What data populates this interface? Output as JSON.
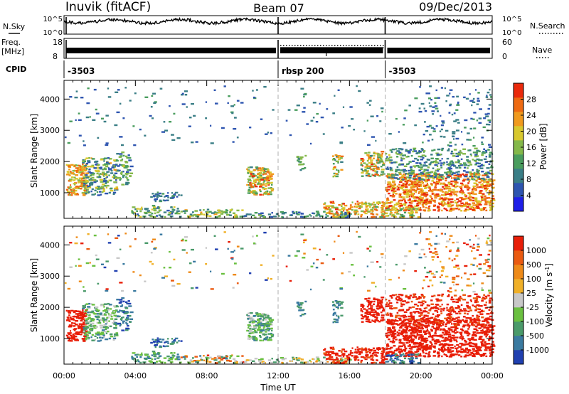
{
  "header": {
    "station": "Inuvik (fitACF)",
    "beam": "Beam 07",
    "date": "09/Dec/2013"
  },
  "panels": {
    "nsky": {
      "left_label": "N.Sky",
      "left_ticks": [
        "10^5",
        "10^0"
      ],
      "right_label": "N.Search",
      "right_ticks": [
        "10^5",
        "10^0"
      ]
    },
    "freq": {
      "left_label_1": "Freq.",
      "left_label_2": "[MHz]",
      "left_ticks": [
        "18",
        "8"
      ],
      "right_label": "Nave",
      "right_ticks": [
        "60",
        "0"
      ]
    },
    "cpid": {
      "label": "CPID",
      "segments": [
        "-3503",
        "rbsp 200",
        "-3503"
      ],
      "segment_start_hours": [
        0,
        12,
        18
      ]
    }
  },
  "chart_data": [
    {
      "type": "heatmap",
      "name": "power",
      "ylabel": "Slant Range [km]",
      "xlim": [
        0,
        24
      ],
      "ylim": [
        180,
        4600
      ],
      "y_ticks": [
        1000,
        2000,
        3000,
        4000
      ],
      "colorbar": {
        "title": "Power [dB]",
        "range": [
          0,
          32
        ],
        "tick_values": [
          4,
          8,
          12,
          16,
          20,
          24,
          28
        ],
        "tick_labels": [
          "4",
          "8",
          "12",
          "16",
          "20",
          "24",
          "28"
        ],
        "colors": [
          "#1f1fe8",
          "#2e55b0",
          "#3a7e86",
          "#4a9d5e",
          "#84b84a",
          "#d8c82e",
          "#f09a1e",
          "#ee6a12",
          "#ea2a0c"
        ]
      }
    },
    {
      "type": "heatmap",
      "name": "velocity",
      "ylabel": "Slant Range [km]",
      "xlabel": "Time UT",
      "xlim": [
        0,
        24
      ],
      "ylim": [
        180,
        4600
      ],
      "y_ticks": [
        1000,
        2000,
        3000,
        4000
      ],
      "x_ticks": [
        0,
        4,
        8,
        12,
        16,
        20,
        24
      ],
      "x_tick_labels": [
        "00:00",
        "04:00",
        "08:00",
        "12:00",
        "16:00",
        "20:00",
        "00:00"
      ],
      "colorbar": {
        "title": "Velocity [m s",
        "title_sup": "-1",
        "title_end": "]",
        "tick_labels": [
          "1000",
          "500",
          "100",
          "25",
          "-25",
          "-100",
          "-500",
          "-1000"
        ],
        "colors": [
          "#2040b0",
          "#3a7aa0",
          "#4a9a6a",
          "#6ac040",
          "#c8c8c8",
          "#f0b028",
          "#ee8a18",
          "#ea5a10",
          "#e81e08"
        ]
      }
    }
  ]
}
